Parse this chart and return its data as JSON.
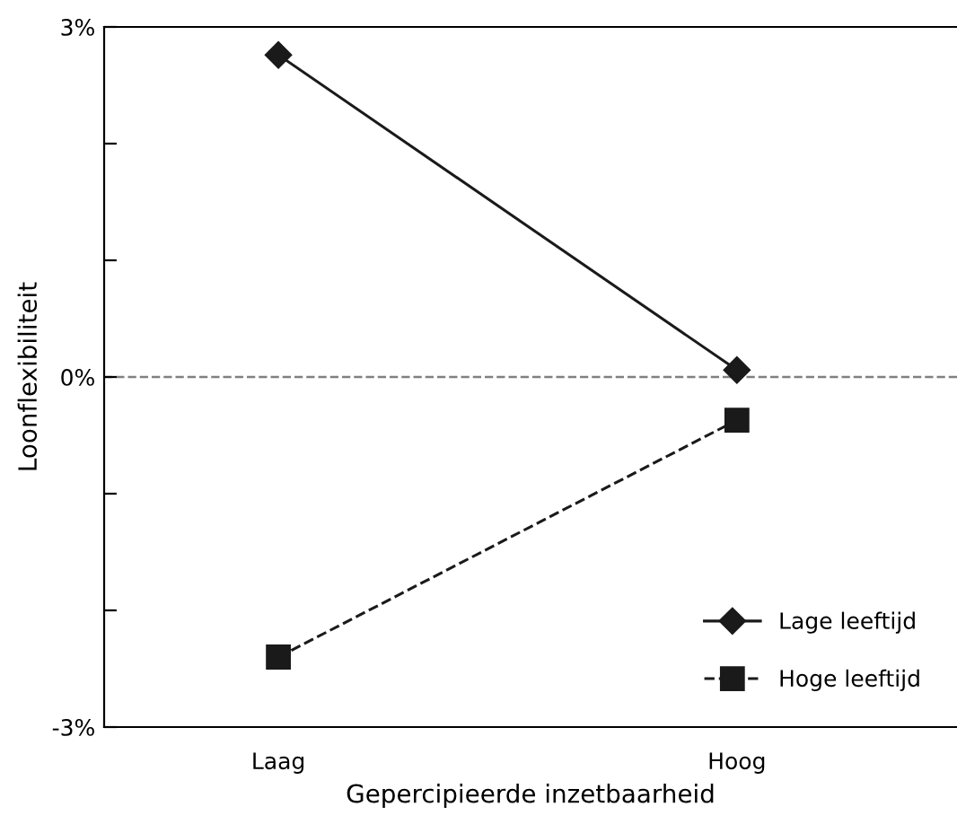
{
  "chart_data": {
    "type": "line",
    "xlabel": "Gepercipieerde inzetbaarheid",
    "ylabel": "Loonflexibiliteit",
    "categories": [
      "Laag",
      "Hoog"
    ],
    "series": [
      {
        "name": "Lage leeftijd",
        "color": "#1a1a1a",
        "values": [
          2.76,
          0.06
        ],
        "marker": "diamond",
        "line_style": "solid"
      },
      {
        "name": "Hoge leeftijd",
        "color": "#1a1a1a",
        "values": [
          -2.4,
          -0.37
        ],
        "marker": "square",
        "line_style": "dashed"
      }
    ],
    "ylim": [
      -3,
      3
    ],
    "yticks": [
      {
        "value": -3,
        "label": "-3%"
      },
      {
        "value": -2,
        "label": null
      },
      {
        "value": -1,
        "label": null
      },
      {
        "value": 0,
        "label": "0%"
      },
      {
        "value": 1,
        "label": null
      },
      {
        "value": 2,
        "label": null
      },
      {
        "value": 3,
        "label": "3%"
      }
    ],
    "ref_lines": [
      {
        "axis": "y",
        "value": 0,
        "color": "#808080",
        "line_style": "dashed"
      }
    ],
    "grid": false,
    "legend": "bottom right"
  }
}
